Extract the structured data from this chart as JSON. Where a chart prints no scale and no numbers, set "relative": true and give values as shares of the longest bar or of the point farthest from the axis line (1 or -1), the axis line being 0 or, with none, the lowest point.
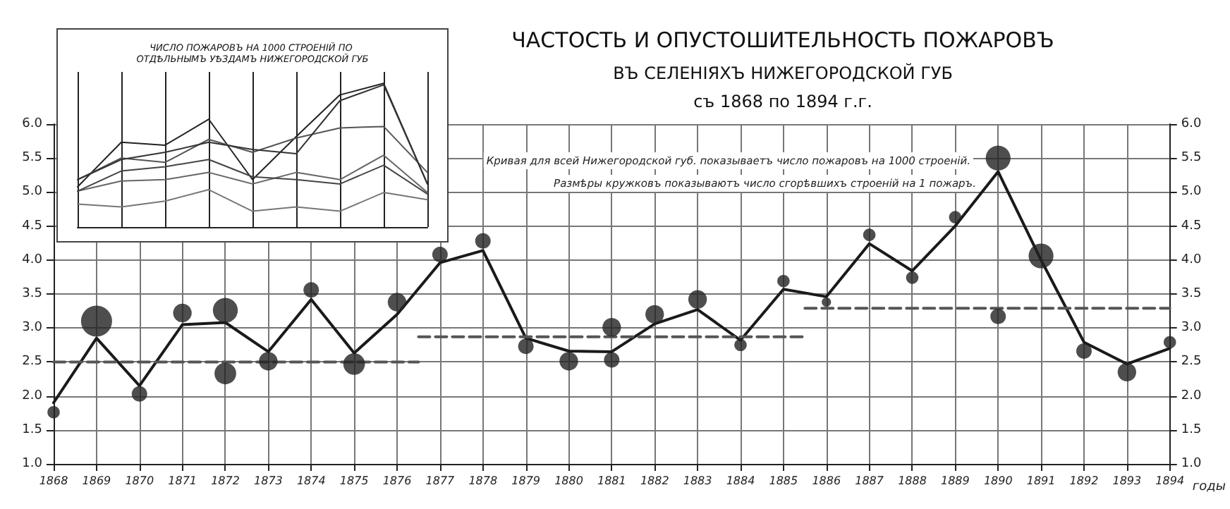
{
  "chart_data": [
    {
      "type": "line",
      "title": "ЧАСТОСТЬ И ОПУСТОШИТЕЛЬНОСТЬ ПОЖАРОВЪ",
      "subtitle": "ВЪ СЕЛЕНІЯХЪ НИЖЕГОРОДСКОЙ ГУБ\nсъ 1868 по 1894 г.г.",
      "xlabel": "годы",
      "annotations": [
        "Кривая для всей Нижегородской губ. показываетъ число пожаровъ на 1000 строеній.",
        "Размѣры кружковъ показываютъ число сгорѣвшихъ строеній на 1 пожаръ."
      ],
      "x": [
        1868,
        1869,
        1870,
        1871,
        1872,
        1873,
        1874,
        1875,
        1876,
        1877,
        1878,
        1879,
        1880,
        1881,
        1882,
        1883,
        1884,
        1885,
        1886,
        1887,
        1888,
        1889,
        1890,
        1891,
        1892,
        1893,
        1894
      ],
      "series": [
        {
          "marker": "none",
          "color": "#1a1a1a",
          "values": [
            1.9,
            2.85,
            2.15,
            3.05,
            3.08,
            2.65,
            3.42,
            2.63,
            3.2,
            3.96,
            4.14,
            2.85,
            2.66,
            2.65,
            3.06,
            3.27,
            2.82,
            3.57,
            3.46,
            4.24,
            3.84,
            4.5,
            5.3,
            4.0,
            2.79,
            2.47,
            2.7
          ]
        },
        {
          "type": "bubble",
          "marker": "circle",
          "color": "#222222",
          "x": [
            1868,
            1869,
            1870,
            1871,
            1872,
            1872,
            1873,
            1874,
            1875,
            1876,
            1877,
            1878,
            1879,
            1880,
            1881,
            1881,
            1882,
            1883,
            1884,
            1885,
            1886,
            1887,
            1888,
            1889,
            1890,
            1890,
            1891,
            1892,
            1893,
            1894
          ],
          "values": [
            1.76,
            3.1,
            2.03,
            3.22,
            3.26,
            2.33,
            2.51,
            3.56,
            2.47,
            3.38,
            4.08,
            4.28,
            2.73,
            2.51,
            3.01,
            2.53,
            3.2,
            3.42,
            2.75,
            3.69,
            3.38,
            4.37,
            3.74,
            4.63,
            5.5,
            3.17,
            4.06,
            2.66,
            2.35,
            2.79
          ],
          "sizes": [
            0.16,
            1,
            0.25,
            0.36,
            0.64,
            0.49,
            0.36,
            0.25,
            0.49,
            0.36,
            0.25,
            0.25,
            0.25,
            0.36,
            0.36,
            0.25,
            0.36,
            0.36,
            0.16,
            0.16,
            0.09,
            0.16,
            0.16,
            0.16,
            0.64,
            0.25,
            0.64,
            0.25,
            0.36,
            0.16
          ]
        },
        {
          "marker": "none",
          "color": "#555555",
          "line_style": "dashed",
          "x": [
            1868,
            1876.5
          ],
          "values": [
            2.5,
            2.5
          ]
        },
        {
          "marker": "none",
          "color": "#555555",
          "line_style": "dashed",
          "x": [
            1876.5,
            1885.5
          ],
          "values": [
            2.87,
            2.87
          ]
        },
        {
          "marker": "none",
          "color": "#555555",
          "line_style": "dashed",
          "x": [
            1885.5,
            1894
          ],
          "values": [
            3.29,
            3.29
          ]
        }
      ],
      "xlim": [
        1868,
        1894
      ],
      "xticks": [
        1868,
        1869,
        1870,
        1871,
        1872,
        1873,
        1874,
        1875,
        1876,
        1877,
        1878,
        1879,
        1880,
        1881,
        1882,
        1883,
        1884,
        1885,
        1886,
        1887,
        1888,
        1889,
        1890,
        1891,
        1892,
        1893,
        1894
      ],
      "ylim": [
        1,
        6
      ],
      "yticks": [
        {
          "value": 1,
          "label": "1.0"
        },
        1.5,
        {
          "value": 2,
          "label": "2.0"
        },
        2.5,
        {
          "value": 3,
          "label": "3.0"
        },
        3.5,
        {
          "value": 4,
          "label": "4.0"
        },
        4.5,
        {
          "value": 5,
          "label": "5.0"
        },
        5.5,
        {
          "value": 6,
          "label": "6.0"
        }
      ],
      "y2lim": [
        1,
        6
      ],
      "y2ticks": [
        {
          "value": 1,
          "label": "1.0"
        },
        1.5,
        {
          "value": 2,
          "label": "2.0"
        },
        2.5,
        {
          "value": 3,
          "label": "3.0"
        },
        3.5,
        {
          "value": 4,
          "label": "4.0"
        },
        4.5,
        {
          "value": 5,
          "label": "5.0"
        },
        5.5,
        {
          "value": 6,
          "label": "6.0"
        }
      ],
      "grid": true
    },
    {
      "type": "line",
      "title": "ЧИСЛО ПОЖАРОВЪ НА 1000 СТРОЕНІЙ ПО ОТДѢЛЬНЫМЪ УѢЗДАМЪ НИЖЕГОРОДСКОЙ ГУБ",
      "relative": true,
      "categories": [
        null,
        null,
        null,
        null,
        null,
        null,
        null,
        null,
        null
      ],
      "series": [
        {
          "color": "#222222",
          "values": [
            0.28,
            0.59,
            0.57,
            0.75,
            0.33,
            0.63,
            0.92,
            1.0,
            0.3
          ]
        },
        {
          "color": "#555555",
          "values": [
            0.33,
            0.48,
            0.45,
            0.61,
            0.52,
            0.62,
            0.69,
            0.7,
            0.38
          ]
        },
        {
          "color": "#333333",
          "values": [
            0.33,
            0.47,
            0.52,
            0.59,
            0.54,
            0.51,
            0.88,
            0.99,
            0.3
          ]
        },
        {
          "color": "#666666",
          "values": [
            0.25,
            0.32,
            0.33,
            0.38,
            0.3,
            0.38,
            0.33,
            0.5,
            0.24
          ]
        },
        {
          "color": "#444444",
          "values": [
            0.25,
            0.39,
            0.42,
            0.47,
            0.35,
            0.33,
            0.3,
            0.43,
            0.23
          ]
        },
        {
          "color": "#777777",
          "values": [
            0.16,
            0.14,
            0.18,
            0.26,
            0.11,
            0.14,
            0.11,
            0.24,
            0.19
          ]
        }
      ],
      "grid": "x",
      "marker": "none"
    }
  ]
}
